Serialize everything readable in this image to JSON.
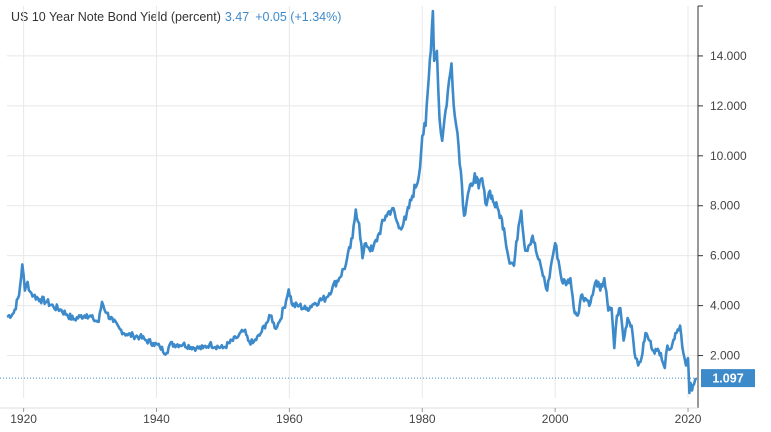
{
  "header": {
    "title": "US 10 Year Note Bond Yield (percent)",
    "value": "3.47",
    "change": "+0.05 (+1.34%)"
  },
  "last_label": "1.097",
  "colors": {
    "line": "#3d8acb",
    "grid": "#e8e8e8",
    "axis": "#333333",
    "last_bg": "#3d8acb",
    "last_text": "#ffffff"
  },
  "chart_data": {
    "type": "line",
    "title": "US 10 Year Note Bond Yield (percent)",
    "xlabel": "",
    "ylabel": "",
    "xlim": [
      1917.5,
      2021.5
    ],
    "ylim": [
      0.3,
      16.0
    ],
    "grid": true,
    "x_ticks": [
      1920,
      1940,
      1960,
      1980,
      2000,
      2020
    ],
    "y_ticks": [
      2,
      4,
      6,
      8,
      10,
      12,
      14
    ],
    "y_tick_labels": [
      "2.000",
      "4.000",
      "6.000",
      "8.000",
      "10.000",
      "12.000",
      "14.000"
    ],
    "last_value": 1.097,
    "series": [
      {
        "x": [
          1917.5,
          1918.5,
          1919.3,
          1919.8,
          1920.2,
          1920.6,
          1921.0,
          1921.5,
          1922.5,
          1923.5,
          1924.5,
          1925.5,
          1926.5,
          1927.5,
          1928.5,
          1929.5,
          1930.5,
          1931.3,
          1931.8,
          1932.5,
          1933.5,
          1934.5,
          1935.5,
          1936.5,
          1937.5,
          1938.5,
          1939.5,
          1940.5,
          1941.5,
          1942.0,
          1944.0,
          1946.0,
          1947.0,
          1948.0,
          1950.0,
          1952.0,
          1953.2,
          1953.8,
          1954.5,
          1955.5,
          1956.5,
          1957.3,
          1957.8,
          1958.5,
          1959.5,
          1959.9,
          1960.5,
          1961.5,
          1962.5,
          1963.5,
          1964.5,
          1965.5,
          1966.5,
          1967.5,
          1968.5,
          1969.5,
          1970.0,
          1970.5,
          1971.0,
          1971.5,
          1972.5,
          1973.5,
          1974.5,
          1975.5,
          1976.5,
          1977.5,
          1978.5,
          1979.5,
          1980.0,
          1980.5,
          1981.0,
          1981.6,
          1981.8,
          1982.2,
          1982.6,
          1983.0,
          1983.5,
          1984.4,
          1984.9,
          1985.3,
          1985.8,
          1986.3,
          1986.9,
          1987.5,
          1987.9,
          1988.5,
          1989.0,
          1989.5,
          1990.2,
          1990.8,
          1991.5,
          1992.3,
          1993.0,
          1993.8,
          1994.5,
          1994.9,
          1995.5,
          1996.0,
          1996.6,
          1997.3,
          1998.0,
          1998.8,
          1999.5,
          2000.0,
          2000.5,
          2001.0,
          2001.8,
          2002.3,
          2002.8,
          2003.4,
          2003.9,
          2004.5,
          2005.3,
          2006.2,
          2006.8,
          2007.4,
          2008.0,
          2008.5,
          2008.9,
          2009.3,
          2009.8,
          2010.3,
          2010.9,
          2011.5,
          2012.1,
          2012.5,
          2013.0,
          2013.6,
          2014.2,
          2014.8,
          2015.3,
          2015.9,
          2016.5,
          2016.9,
          2017.5,
          2018.1,
          2018.8,
          2019.3,
          2019.7,
          2020.0,
          2020.2,
          2020.4,
          2020.6,
          2020.9,
          2021.2
        ],
        "y": [
          3.55,
          3.7,
          4.4,
          5.65,
          4.6,
          4.95,
          4.55,
          4.4,
          4.25,
          4.15,
          3.95,
          3.85,
          3.65,
          3.45,
          3.55,
          3.65,
          3.45,
          3.35,
          4.15,
          3.7,
          3.35,
          3.05,
          2.85,
          2.8,
          2.75,
          2.6,
          2.5,
          2.35,
          2.1,
          2.45,
          2.45,
          2.3,
          2.3,
          2.45,
          2.3,
          2.7,
          3.0,
          2.6,
          2.5,
          2.8,
          3.3,
          3.6,
          3.1,
          3.35,
          4.2,
          4.65,
          4.0,
          4.0,
          3.85,
          4.05,
          4.2,
          4.3,
          4.75,
          5.1,
          5.65,
          6.7,
          7.85,
          7.3,
          5.9,
          6.5,
          6.2,
          6.9,
          7.6,
          7.9,
          7.1,
          7.45,
          8.4,
          9.2,
          10.8,
          11.2,
          13.2,
          15.8,
          13.8,
          14.2,
          11.5,
          10.6,
          11.8,
          13.7,
          11.6,
          10.9,
          9.4,
          7.6,
          8.5,
          8.8,
          9.3,
          8.7,
          9.1,
          8.1,
          8.6,
          8.1,
          7.8,
          7.1,
          5.9,
          5.6,
          7.2,
          7.8,
          6.2,
          6.4,
          6.8,
          6.0,
          5.4,
          4.6,
          5.8,
          6.5,
          5.8,
          5.0,
          4.9,
          5.1,
          3.9,
          3.6,
          4.4,
          4.3,
          4.1,
          5.0,
          4.6,
          5.1,
          3.8,
          3.9,
          2.3,
          3.6,
          3.9,
          2.6,
          3.5,
          3.2,
          1.9,
          1.6,
          1.9,
          2.9,
          2.6,
          2.2,
          2.2,
          2.1,
          1.5,
          2.4,
          2.3,
          2.9,
          3.2,
          2.1,
          1.6,
          1.9,
          0.5,
          0.9,
          0.6,
          0.85,
          1.097
        ]
      }
    ]
  }
}
